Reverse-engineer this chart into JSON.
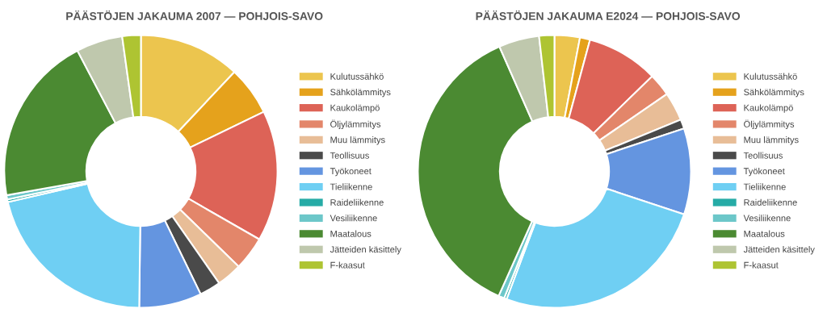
{
  "chart_data": [
    {
      "type": "donut",
      "title": "PÄÄSTÖJEN JAKAUMA 2007 — POHJOIS-SAVO",
      "legend": "right",
      "categories": [
        "Kulutussähkö",
        "Sähkölämmitys",
        "Kaukolämpö",
        "Öljylämmitys",
        "Muu lämmitys",
        "Teollisuus",
        "Työkoneet",
        "Tieliikenne",
        "Raideliikenne",
        "Vesiliikenne",
        "Maatalous",
        "Jätteiden käsittely",
        "F-kaasut"
      ],
      "values": [
        12,
        5.8,
        15.5,
        4,
        3,
        2.5,
        7.4,
        21.2,
        0.3,
        0.5,
        20.1,
        5.5,
        2.2
      ],
      "colors": [
        "#ecc54e",
        "#e5a21c",
        "#dd6357",
        "#e3866a",
        "#e8bd97",
        "#4a4a4a",
        "#6495e0",
        "#6fcff3",
        "#26aba6",
        "#6cc7c9",
        "#4b8a32",
        "#bfc8ad",
        "#aec432"
      ]
    },
    {
      "type": "donut",
      "title": "PÄÄSTÖJEN JAKAUMA E2024 — POHJOIS-SAVO",
      "legend": "right",
      "categories": [
        "Kulutussähkö",
        "Sähkölämmitys",
        "Kaukolämpö",
        "Öljylämmitys",
        "Muu lämmitys",
        "Teollisuus",
        "Työkoneet",
        "Tieliikenne",
        "Raideliikenne",
        "Vesiliikenne",
        "Maatalous",
        "Jätteiden käsittely",
        "F-kaasut"
      ],
      "values": [
        3,
        1.2,
        8.5,
        2.7,
        3.4,
        1.1,
        10.2,
        25.6,
        0.3,
        0.7,
        36.7,
        4.8,
        1.8
      ],
      "colors": [
        "#ecc54e",
        "#e5a21c",
        "#dd6357",
        "#e3866a",
        "#e8bd97",
        "#4a4a4a",
        "#6495e0",
        "#6fcff3",
        "#26aba6",
        "#6cc7c9",
        "#4b8a32",
        "#bfc8ad",
        "#aec432"
      ]
    }
  ]
}
